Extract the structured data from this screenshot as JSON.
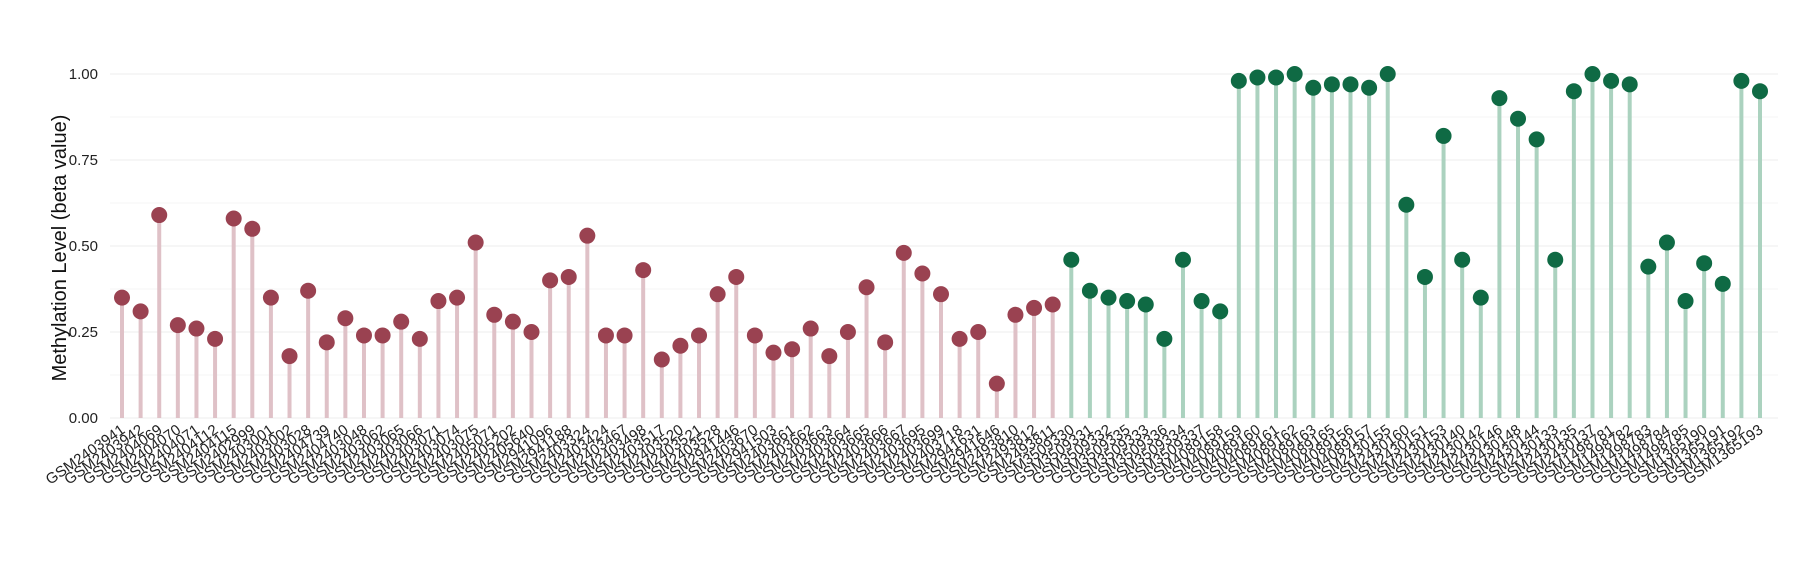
{
  "chart_data": {
    "type": "lollipop",
    "title": "",
    "xlabel": "",
    "ylabel": "Methylation Level (beta value)",
    "ylim": [
      0,
      1
    ],
    "y_ticks": [
      "0.00",
      "0.25",
      "0.50",
      "0.75",
      "1.00"
    ],
    "grid": true,
    "legend": "none",
    "colors": {
      "group1_point": "#9a4251",
      "group1_stem": "#dfc1c7",
      "group2_point": "#0f6a44",
      "group2_stem": "#abd2bf"
    },
    "series": [
      {
        "color_group": "group1",
        "categories": [
          "GSM2403941",
          "GSM2403942",
          "GSM2404069",
          "GSM2404070",
          "GSM2404071",
          "GSM2404112",
          "GSM2404115",
          "GSM2402999",
          "GSM2403001",
          "GSM2403002",
          "GSM2403028",
          "GSM2404739",
          "GSM2404740",
          "GSM2403048",
          "GSM2403062",
          "GSM2403065",
          "GSM2403066",
          "GSM2403071",
          "GSM2403074",
          "GSM2403075",
          "GSM2405071",
          "GSM2405202",
          "GSM2405640",
          "GSM2941096",
          "GSM2941188",
          "GSM2403324",
          "GSM2403424",
          "GSM2403467",
          "GSM2403498",
          "GSM2403517",
          "GSM2403520",
          "GSM2403521",
          "GSM2403528",
          "GSM2941446",
          "GSM2403670",
          "GSM2941503",
          "GSM2403661",
          "GSM2403662",
          "GSM2403663",
          "GSM2403664",
          "GSM2403665",
          "GSM2403666",
          "GSM2403667",
          "GSM2403695",
          "GSM2403699",
          "GSM2403718",
          "GSM2941631",
          "GSM2941646",
          "GSM2493810",
          "GSM2493812",
          "GSM2493811"
        ],
        "values": [
          0.35,
          0.31,
          0.59,
          0.27,
          0.26,
          0.23,
          0.58,
          0.55,
          0.35,
          0.18,
          0.37,
          0.22,
          0.29,
          0.24,
          0.24,
          0.28,
          0.23,
          0.34,
          0.35,
          0.51,
          0.3,
          0.28,
          0.25,
          0.4,
          0.41,
          0.53,
          0.24,
          0.24,
          0.43,
          0.17,
          0.21,
          0.24,
          0.36,
          0.41,
          0.24,
          0.19,
          0.2,
          0.26,
          0.18,
          0.25,
          0.38,
          0.22,
          0.48,
          0.42,
          0.36,
          0.23,
          0.25,
          0.1,
          0.3,
          0.32,
          0.33
        ]
      },
      {
        "color_group": "group2",
        "categories": [
          "GSM3509330",
          "GSM3509331",
          "GSM3509332",
          "GSM3509335",
          "GSM3509333",
          "GSM3509336",
          "GSM3509334",
          "GSM3509337",
          "GSM4089158",
          "GSM4089159",
          "GSM4089160",
          "GSM4089161",
          "GSM4089162",
          "GSM4089163",
          "GSM4089165",
          "GSM4089156",
          "GSM4089157",
          "GSM2430155",
          "GSM2430160",
          "GSM2430151",
          "GSM2430153",
          "GSM2430140",
          "GSM2430142",
          "GSM2430146",
          "GSM2430148",
          "GSM2430144",
          "GSM2430133",
          "GSM2430135",
          "GSM2430137",
          "GSM1498781",
          "GSM1498782",
          "GSM1498783",
          "GSM1498784",
          "GSM1498785",
          "GSM1365190",
          "GSM1365191",
          "GSM1365192",
          "GSM1365193"
        ],
        "values": [
          0.46,
          0.37,
          0.35,
          0.34,
          0.33,
          0.23,
          0.46,
          0.34,
          0.31,
          0.98,
          0.99,
          0.99,
          1.0,
          0.96,
          0.97,
          0.97,
          0.96,
          1.0,
          0.62,
          0.41,
          0.82,
          0.46,
          0.35,
          0.93,
          0.87,
          0.81,
          0.46,
          0.95,
          1.0,
          0.98,
          0.97,
          0.44,
          0.51,
          0.34,
          0.45,
          0.39,
          0.98,
          0.95
        ]
      }
    ]
  }
}
